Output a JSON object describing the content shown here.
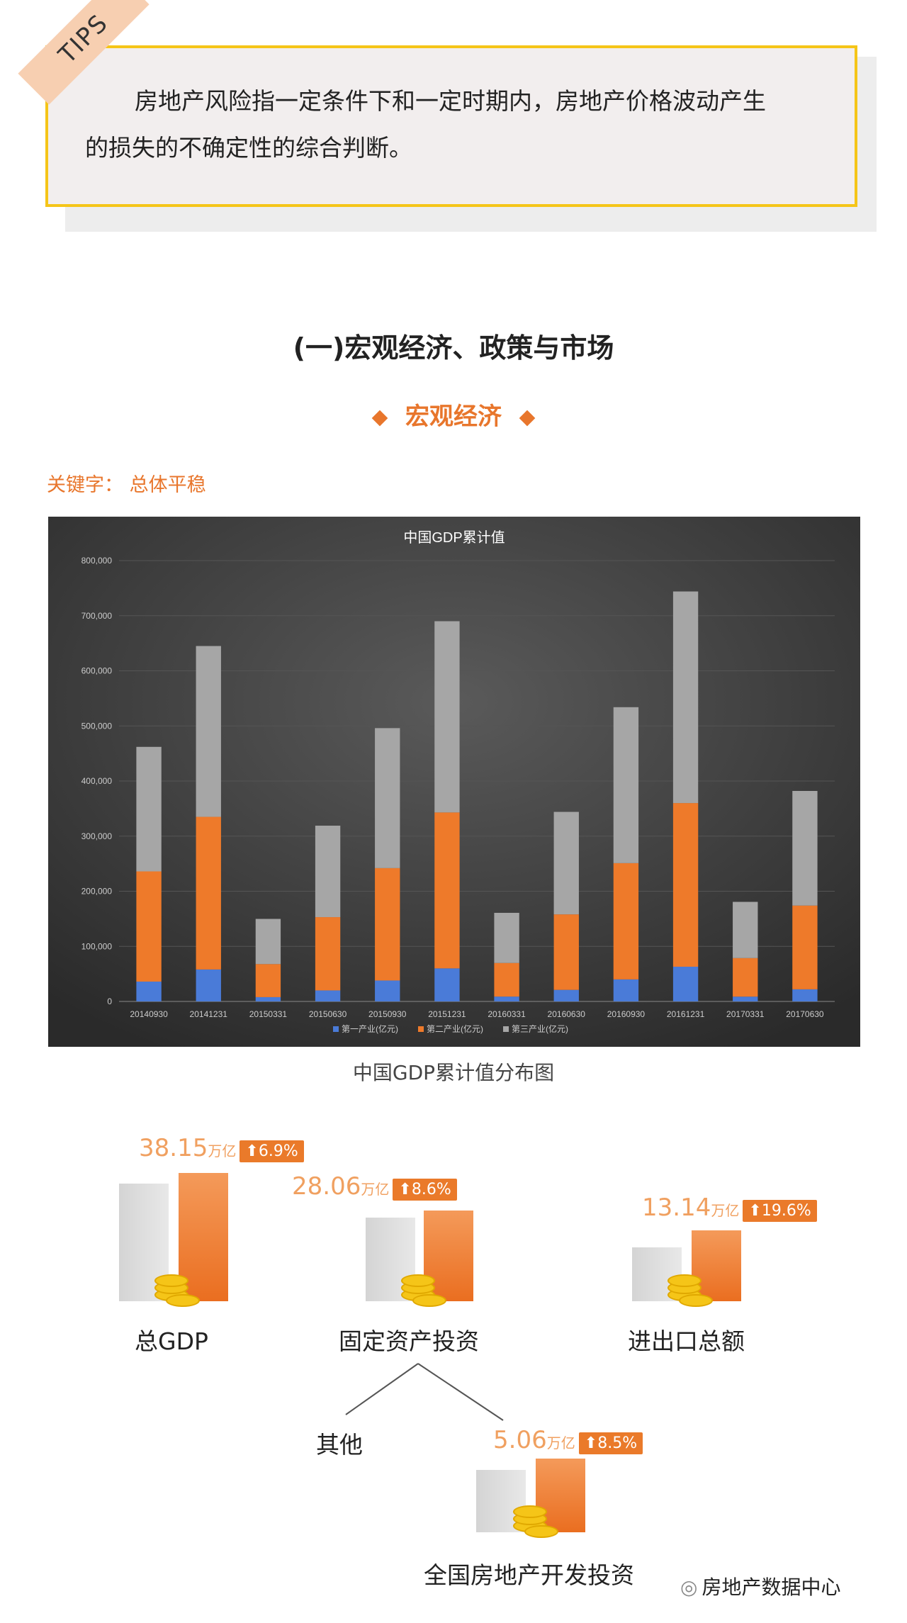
{
  "tips": {
    "ribbon": "TIPS",
    "line1": "房地产风险指一定条件下和一定时期内，房地产价格波动产生",
    "line2": "的损失的不确定性的综合判断。"
  },
  "section_heading": "(一)宏观经济、政策与市场",
  "sub_heading": "宏观经济",
  "keyword": "关键字：  总体平稳",
  "chart_caption": "中国GDP累计值分布图",
  "chart_data": {
    "type": "bar",
    "stacked": true,
    "title": "中国GDP累计值",
    "categories": [
      "20140930",
      "20141231",
      "20150331",
      "20150630",
      "20150930",
      "20151231",
      "20160331",
      "20160630",
      "20160930",
      "20161231",
      "20170331",
      "20170630"
    ],
    "series": [
      {
        "name": "第一产业(亿元)",
        "color": "#4a7bd8",
        "values": [
          36000,
          58000,
          7800,
          20000,
          38000,
          60000,
          8800,
          21000,
          40000,
          63000,
          8700,
          22000
        ]
      },
      {
        "name": "第二产业(亿元)",
        "color": "#ee7a2a",
        "values": [
          200000,
          277000,
          60000,
          133000,
          204000,
          283000,
          61000,
          137000,
          211000,
          297000,
          70000,
          152000
        ]
      },
      {
        "name": "第三产业(亿元)",
        "color": "#a6a6a6",
        "values": [
          226000,
          310000,
          82000,
          166000,
          254000,
          347000,
          91000,
          186000,
          283000,
          384000,
          102000,
          208000
        ]
      }
    ],
    "ylim": [
      0,
      800000
    ],
    "yticks": [
      "800,000",
      "700,000",
      "600,000",
      "500,000",
      "400,000",
      "300,000",
      "200,000",
      "100,000",
      "0"
    ],
    "ytick_values": [
      800000,
      700000,
      600000,
      500000,
      400000,
      300000,
      200000,
      100000,
      0
    ],
    "grid": true,
    "legend_position": "bottom"
  },
  "stats": [
    {
      "value": "38.15",
      "unit": "万亿",
      "badge": "⬆6.9%",
      "label": "总GDP"
    },
    {
      "value": "28.06",
      "unit": "万亿",
      "badge": "⬆8.6%",
      "label": "固定资产投资"
    },
    {
      "value": "13.14",
      "unit": "万亿",
      "badge": "⬆19.6%",
      "label": "进出口总额"
    },
    {
      "value": "5.06",
      "unit": "万亿",
      "badge": "⬆8.5%",
      "label": "全国房地产开发投资"
    }
  ],
  "other_label": "其他",
  "footer_brand": "房地产数据中心",
  "colors": {
    "accent": "#e8762c",
    "tips_border": "#f5c518"
  }
}
